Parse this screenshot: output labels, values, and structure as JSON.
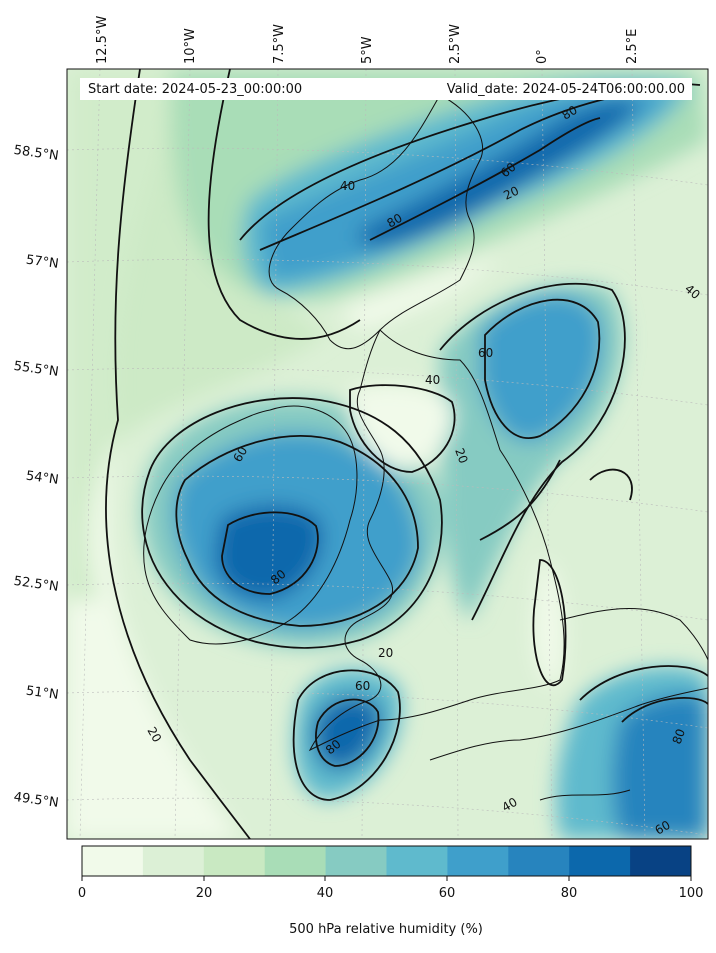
{
  "map": {
    "start_label": "Start date: 2024-05-23_00:00:00",
    "valid_label": "Valid_date: 2024-05-24T06:00:00.00",
    "lon_labels": [
      "12.5°W",
      "10°W",
      "7.5°W",
      "5°W",
      "2.5°W",
      "0°",
      "2.5°E"
    ],
    "lat_labels": [
      "58.5°N",
      "57°N",
      "55.5°N",
      "54°N",
      "52.5°N",
      "51°N",
      "49.5°N"
    ],
    "contour_levels": [
      "20",
      "40",
      "60",
      "80"
    ]
  },
  "colorbar": {
    "label": "500 hPa relative humidity (%)",
    "ticks": [
      "0",
      "20",
      "40",
      "60",
      "80",
      "100"
    ],
    "colors": [
      "#f1faea",
      "#dcf0d6",
      "#c9e9c2",
      "#a9ddb7",
      "#86cbc2",
      "#5fbacd",
      "#3f9fcb",
      "#2784be",
      "#0c68ac",
      "#084284"
    ]
  }
}
